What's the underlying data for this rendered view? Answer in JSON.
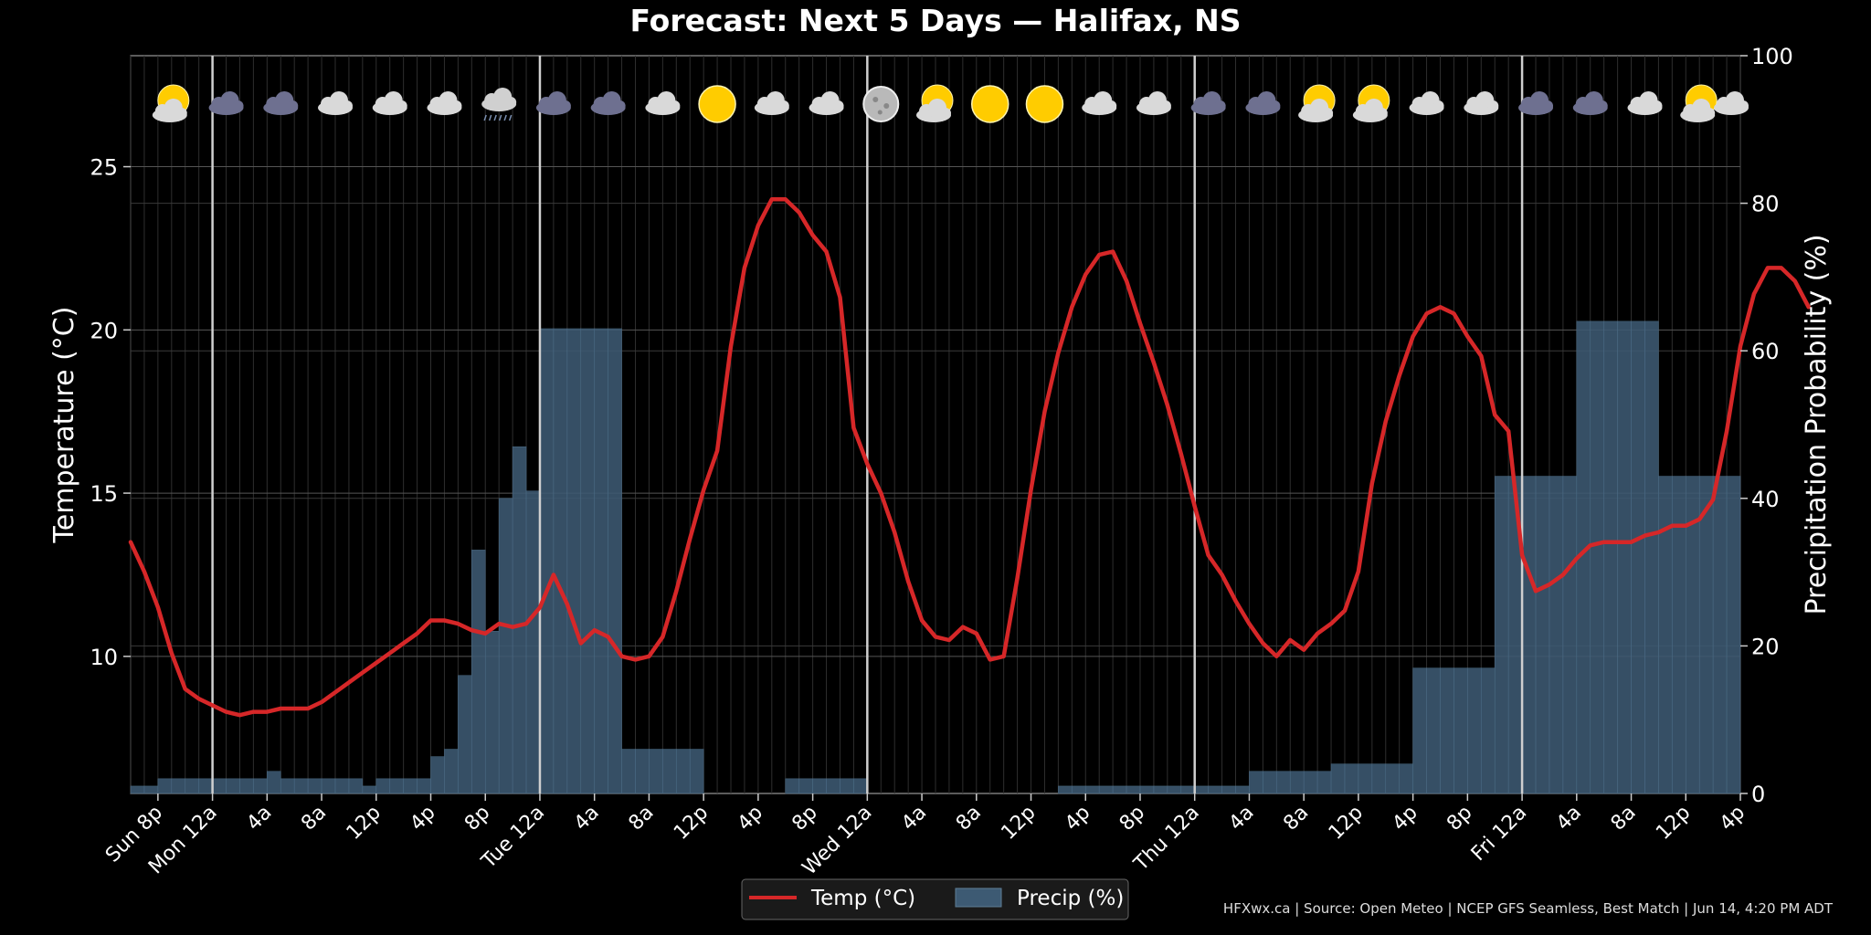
{
  "chart_data": {
    "type": "line",
    "title": "Forecast: Next 5 Days — Halifax, NS",
    "ylabel_left": "Temperature (°C)",
    "ylabel_right": "Precipitation Probability (%)",
    "ylim_left": [
      5.8,
      28.4
    ],
    "ylim_right": [
      0,
      100
    ],
    "yticks_left": [
      "10",
      "15",
      "20",
      "25"
    ],
    "yticks_right": [
      "0",
      "20",
      "40",
      "60",
      "80",
      "100"
    ],
    "xlim_hours": [
      -2,
      116
    ],
    "grid": true,
    "legend_position": "bottom-center",
    "x_tick_labels": [
      {
        "h": 0,
        "label": "Sun 8p"
      },
      {
        "h": 4,
        "label": "Mon 12a"
      },
      {
        "h": 8,
        "label": "4a"
      },
      {
        "h": 12,
        "label": "8a"
      },
      {
        "h": 16,
        "label": "12p"
      },
      {
        "h": 20,
        "label": "4p"
      },
      {
        "h": 24,
        "label": "8p"
      },
      {
        "h": 28,
        "label": "Tue 12a"
      },
      {
        "h": 32,
        "label": "4a"
      },
      {
        "h": 36,
        "label": "8a"
      },
      {
        "h": 40,
        "label": "12p"
      },
      {
        "h": 44,
        "label": "4p"
      },
      {
        "h": 48,
        "label": "8p"
      },
      {
        "h": 52,
        "label": "Wed 12a"
      },
      {
        "h": 56,
        "label": "4a"
      },
      {
        "h": 60,
        "label": "8a"
      },
      {
        "h": 64,
        "label": "12p"
      },
      {
        "h": 68,
        "label": "4p"
      },
      {
        "h": 72,
        "label": "8p"
      },
      {
        "h": 76,
        "label": "Thu 12a"
      },
      {
        "h": 80,
        "label": "4a"
      },
      {
        "h": 84,
        "label": "8a"
      },
      {
        "h": 88,
        "label": "12p"
      },
      {
        "h": 92,
        "label": "4p"
      },
      {
        "h": 96,
        "label": "8p"
      },
      {
        "h": 100,
        "label": "Fri 12a"
      },
      {
        "h": 104,
        "label": "4a"
      },
      {
        "h": 108,
        "label": "8a"
      },
      {
        "h": 112,
        "label": "12p"
      },
      {
        "h": 116,
        "label": "4p"
      }
    ],
    "day_boundaries_hours": [
      4,
      28,
      52,
      76,
      100
    ],
    "series": [
      {
        "name": "Temp (°C)",
        "color": "#d62728",
        "axis": "left",
        "start_hour": -2,
        "step_hours": 1,
        "values": [
          13.5,
          12.6,
          11.5,
          10.1,
          9.0,
          8.7,
          8.5,
          8.3,
          8.2,
          8.3,
          8.3,
          8.4,
          8.4,
          8.4,
          8.6,
          8.9,
          9.2,
          9.5,
          9.8,
          10.1,
          10.4,
          10.7,
          11.1,
          11.1,
          11.0,
          10.8,
          10.7,
          11.0,
          10.9,
          11.0,
          11.5,
          12.5,
          11.6,
          10.4,
          10.8,
          10.6,
          10.0,
          9.9,
          10.0,
          10.6,
          12.0,
          13.6,
          15.1,
          16.3,
          19.5,
          21.9,
          23.2,
          24.0,
          24.0,
          23.6,
          22.9,
          22.4,
          21.0,
          17.0,
          15.9,
          15.0,
          13.8,
          12.3,
          11.1,
          10.6,
          10.5,
          10.9,
          10.7,
          9.9,
          10.0,
          12.4,
          15.1,
          17.5,
          19.3,
          20.7,
          21.7,
          22.3,
          22.4,
          21.5,
          20.2,
          19.0,
          17.7,
          16.2,
          14.6,
          13.1,
          12.5,
          11.7,
          11.0,
          10.4,
          10.0,
          10.5,
          10.2,
          10.7,
          11.0,
          11.4,
          12.6,
          15.3,
          17.2,
          18.6,
          19.8,
          20.5,
          20.7,
          20.5,
          19.8,
          19.2,
          17.4,
          16.9,
          13.1,
          12.0,
          12.2,
          12.5,
          13.0,
          13.4,
          13.5,
          13.5,
          13.5,
          13.7,
          13.8,
          14.0,
          14.0,
          14.2,
          14.8,
          16.9,
          19.5,
          21.1,
          21.9,
          21.9,
          21.5,
          20.7
        ]
      },
      {
        "name": "Precip (%)",
        "color": "#3d5a73",
        "axis": "right",
        "start_hour": -2,
        "step_hours": 1,
        "values": [
          1,
          1,
          2,
          2,
          2,
          2,
          2,
          2,
          2,
          2,
          3,
          2,
          2,
          2,
          2,
          2,
          2,
          1,
          2,
          2,
          2,
          2,
          5,
          6,
          16,
          33,
          22,
          40,
          47,
          41,
          63,
          63,
          63,
          63,
          63,
          63,
          6,
          6,
          6,
          6,
          6,
          6,
          0,
          0,
          0,
          0,
          0,
          0,
          2,
          2,
          2,
          2,
          2,
          2,
          0,
          0,
          0,
          0,
          0,
          0,
          0,
          0,
          0,
          0,
          0,
          0,
          0,
          0,
          1,
          1,
          1,
          1,
          1,
          1,
          1,
          1,
          1,
          1,
          1,
          1,
          1,
          1,
          3,
          3,
          3,
          3,
          3,
          3,
          4,
          4,
          4,
          4,
          4,
          4,
          17,
          17,
          17,
          17,
          17,
          17,
          43,
          43,
          43,
          43,
          43,
          43,
          64,
          64,
          64,
          64,
          64,
          64,
          43,
          43,
          43,
          43,
          43,
          43
        ]
      }
    ]
  },
  "weather_icons": [
    {
      "h": 1,
      "icon": "sun-cloud-icon"
    },
    {
      "h": 5,
      "icon": "dark-cloud-icon"
    },
    {
      "h": 9,
      "icon": "dark-cloud-icon"
    },
    {
      "h": 13,
      "icon": "cloud-icon"
    },
    {
      "h": 17,
      "icon": "cloud-icon"
    },
    {
      "h": 21,
      "icon": "cloud-icon"
    },
    {
      "h": 25,
      "icon": "rain-cloud-icon"
    },
    {
      "h": 29,
      "icon": "dark-cloud-icon"
    },
    {
      "h": 33,
      "icon": "dark-cloud-icon"
    },
    {
      "h": 37,
      "icon": "cloud-icon"
    },
    {
      "h": 41,
      "icon": "sun-icon"
    },
    {
      "h": 45,
      "icon": "cloud-icon"
    },
    {
      "h": 49,
      "icon": "cloud-icon"
    },
    {
      "h": 53,
      "icon": "moon-icon"
    },
    {
      "h": 57,
      "icon": "sun-cloud-icon"
    },
    {
      "h": 61,
      "icon": "sun-icon"
    },
    {
      "h": 65,
      "icon": "sun-icon"
    },
    {
      "h": 69,
      "icon": "cloud-icon"
    },
    {
      "h": 73,
      "icon": "cloud-icon"
    },
    {
      "h": 77,
      "icon": "dark-cloud-icon"
    },
    {
      "h": 81,
      "icon": "dark-cloud-icon"
    },
    {
      "h": 85,
      "icon": "sun-cloud-icon"
    },
    {
      "h": 89,
      "icon": "sun-cloud-icon"
    },
    {
      "h": 93,
      "icon": "cloud-icon"
    },
    {
      "h": 97,
      "icon": "cloud-icon"
    },
    {
      "h": 101,
      "icon": "dark-cloud-icon"
    },
    {
      "h": 105,
      "icon": "dark-cloud-icon"
    },
    {
      "h": 109,
      "icon": "cloud-icon"
    },
    {
      "h": 113,
      "icon": "sun-cloud-icon"
    },
    {
      "h": 117,
      "icon": "cloud-icon"
    }
  ],
  "legend": {
    "temp_label": "Temp (°C)",
    "precip_label": "Precip (%)"
  },
  "footer": {
    "text": "HFXwx.ca | Source: Open Meteo | NCEP GFS Seamless, Best Match | Jun 14, 4:20 PM ADT"
  }
}
